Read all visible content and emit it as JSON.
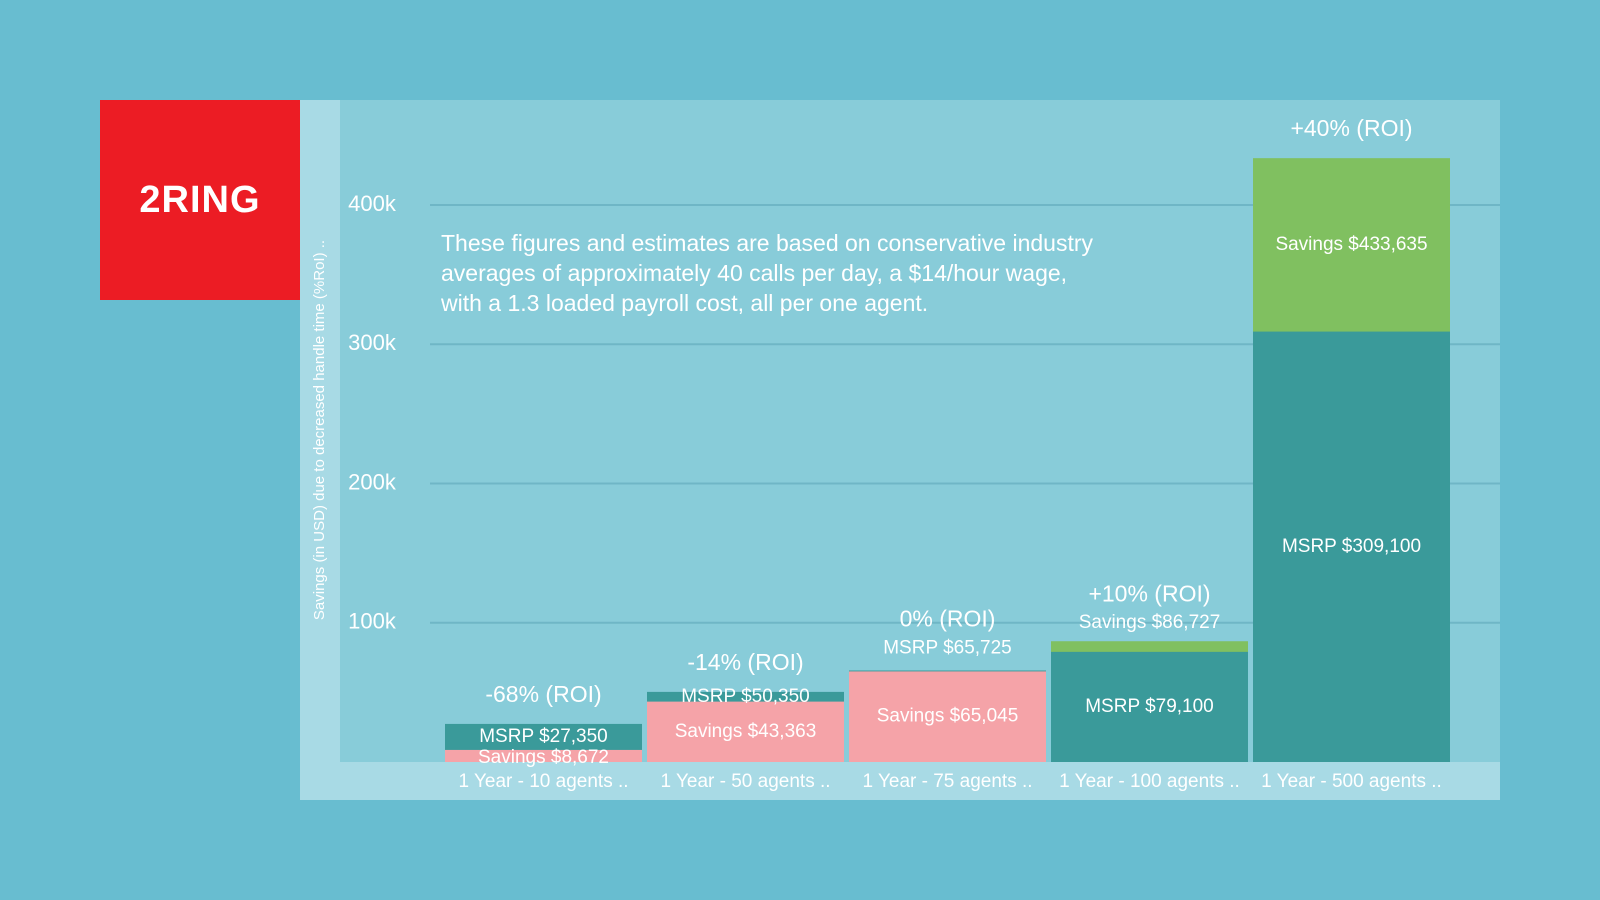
{
  "logo": {
    "text": "2RING"
  },
  "colors": {
    "background": "#68bdd0",
    "plot_area": "#88ccd9",
    "axis_strip": "#a8dae5",
    "logo_red": "#ec1c24",
    "msrp": "#3a9a9a",
    "savings_pink": "#f5a3a8",
    "savings_green": "#80c060",
    "gridline": "#6fb6c6"
  },
  "note_lines": [
    "These figures and estimates are based on conservative industry",
    "averages of approximately 40 calls per day, a $14/hour wage,",
    "with a 1.3 loaded payroll cost, all per one agent."
  ],
  "chart_data": {
    "type": "bar",
    "ylabel": "Savings (in USD) due to decreased handle time (%RoI) ..",
    "xlabel": "",
    "ylim": [
      0,
      440000
    ],
    "yticks": [
      100000,
      200000,
      300000,
      400000
    ],
    "ytick_labels": [
      "100k",
      "200k",
      "300k",
      "400k"
    ],
    "grid": true,
    "categories": [
      "1 Year - 10 agents ..",
      "1 Year - 50 agents ..",
      "1 Year - 75 agents ..",
      "1 Year - 100 agents ..",
      "1 Year - 500 agents .."
    ],
    "roi_labels": [
      "-68% (ROI)",
      "-14% (ROI)",
      "0% (ROI)",
      "+10% (ROI)",
      "+40% (ROI)"
    ],
    "bars": [
      {
        "msrp": 27350,
        "savings": 8672,
        "msrp_label": "MSRP $27,350",
        "savings_label": "Savings $8,672",
        "savings_kind": "pink"
      },
      {
        "msrp": 50350,
        "savings": 43363,
        "msrp_label": "MSRP $50,350",
        "savings_label": "Savings $43,363",
        "savings_kind": "pink"
      },
      {
        "msrp": 65725,
        "savings": 65045,
        "msrp_label": "MSRP $65,725",
        "savings_label": "Savings $65,045",
        "savings_kind": "pink"
      },
      {
        "msrp": 79100,
        "savings": 86727,
        "msrp_label": "MSRP $79,100",
        "savings_label": "Savings $86,727",
        "savings_kind": "green"
      },
      {
        "msrp": 309100,
        "savings": 433635,
        "msrp_label": "MSRP $309,100",
        "savings_label": "Savings $433,635",
        "savings_kind": "green"
      }
    ]
  }
}
